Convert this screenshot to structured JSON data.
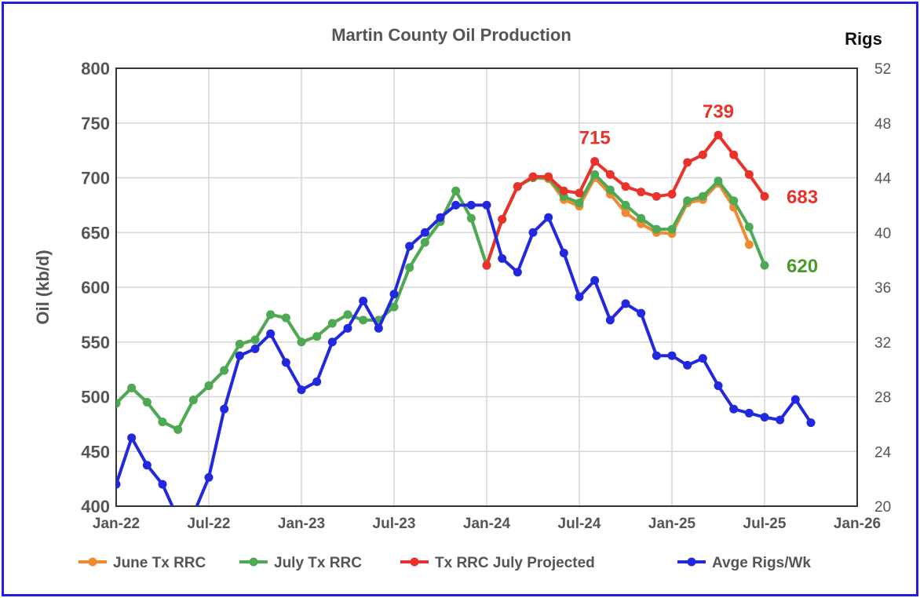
{
  "chart_data": {
    "type": "line",
    "title": "Martin County Oil Production",
    "ylabel": "Oil (kb/d)",
    "y2label": "Rigs",
    "ylim": [
      400,
      800
    ],
    "y2lim": [
      20,
      52
    ],
    "yticks": [
      400,
      450,
      500,
      550,
      600,
      650,
      700,
      750,
      800
    ],
    "y2ticks": [
      20,
      24,
      28,
      32,
      36,
      40,
      44,
      48,
      52
    ],
    "xticks": [
      "Jan-22",
      "Jul-22",
      "Jan-23",
      "Jul-23",
      "Jan-24",
      "Jul-24",
      "Jan-25",
      "Jul-25",
      "Jan-26"
    ],
    "x_start": "Jan-22",
    "x_months_range": [
      0,
      48
    ],
    "grid": true,
    "legend_position": "bottom",
    "series": [
      {
        "name": "June Tx RRC",
        "axis": "left",
        "color": "#f08a30",
        "start_month": 0,
        "values": [
          494,
          508,
          495,
          477,
          470,
          497,
          510,
          524,
          548,
          552,
          575,
          572,
          550,
          555,
          567,
          575,
          570,
          570,
          582,
          618,
          641,
          660,
          688,
          663,
          620,
          662,
          692,
          700,
          699,
          680,
          674,
          700,
          685,
          668,
          658,
          650,
          649,
          677,
          680,
          695,
          673,
          639
        ]
      },
      {
        "name": "July Tx RRC",
        "axis": "left",
        "color": "#4caa55",
        "start_month": 0,
        "values": [
          494,
          508,
          495,
          477,
          470,
          497,
          510,
          524,
          548,
          552,
          575,
          572,
          550,
          555,
          567,
          575,
          570,
          570,
          582,
          618,
          641,
          660,
          688,
          663,
          620,
          662,
          692,
          700,
          700,
          683,
          677,
          703,
          689,
          675,
          663,
          653,
          653,
          679,
          683,
          697,
          679,
          655,
          620
        ]
      },
      {
        "name": "Tx RRC July Projected",
        "axis": "left",
        "color": "#e8322a",
        "start_month": 24,
        "values": [
          620,
          662,
          692,
          701,
          701,
          688,
          686,
          715,
          703,
          692,
          687,
          683,
          685,
          714,
          721,
          739,
          721,
          703,
          683
        ]
      },
      {
        "name": "Avge Rigs/Wk",
        "axis": "right",
        "color": "#2228dd",
        "start_month": 0,
        "values": [
          21.6,
          25.0,
          23.0,
          21.6,
          19.1,
          19.4,
          22.1,
          27.1,
          31.0,
          31.5,
          32.6,
          30.5,
          28.5,
          29.1,
          32.0,
          33.0,
          35.0,
          33.0,
          35.5,
          39.0,
          40.0,
          41.1,
          42.0,
          42.0,
          42.0,
          38.1,
          37.1,
          40.0,
          41.1,
          38.5,
          35.3,
          36.5,
          33.6,
          34.8,
          34.1,
          31.0,
          31.0,
          30.3,
          30.8,
          28.8,
          27.1,
          26.8,
          26.5,
          26.3,
          27.8,
          26.1
        ]
      }
    ],
    "annotations": [
      {
        "text": "715",
        "color": "#e8322a",
        "month": 31,
        "value": 715
      },
      {
        "text": "739",
        "color": "#e8322a",
        "month": 39,
        "value": 739
      },
      {
        "text": "683",
        "color": "#e8322a",
        "month": 42,
        "value": 683
      },
      {
        "text": "620",
        "color": "#4a9a2a",
        "month": 42,
        "value": 620
      }
    ]
  }
}
